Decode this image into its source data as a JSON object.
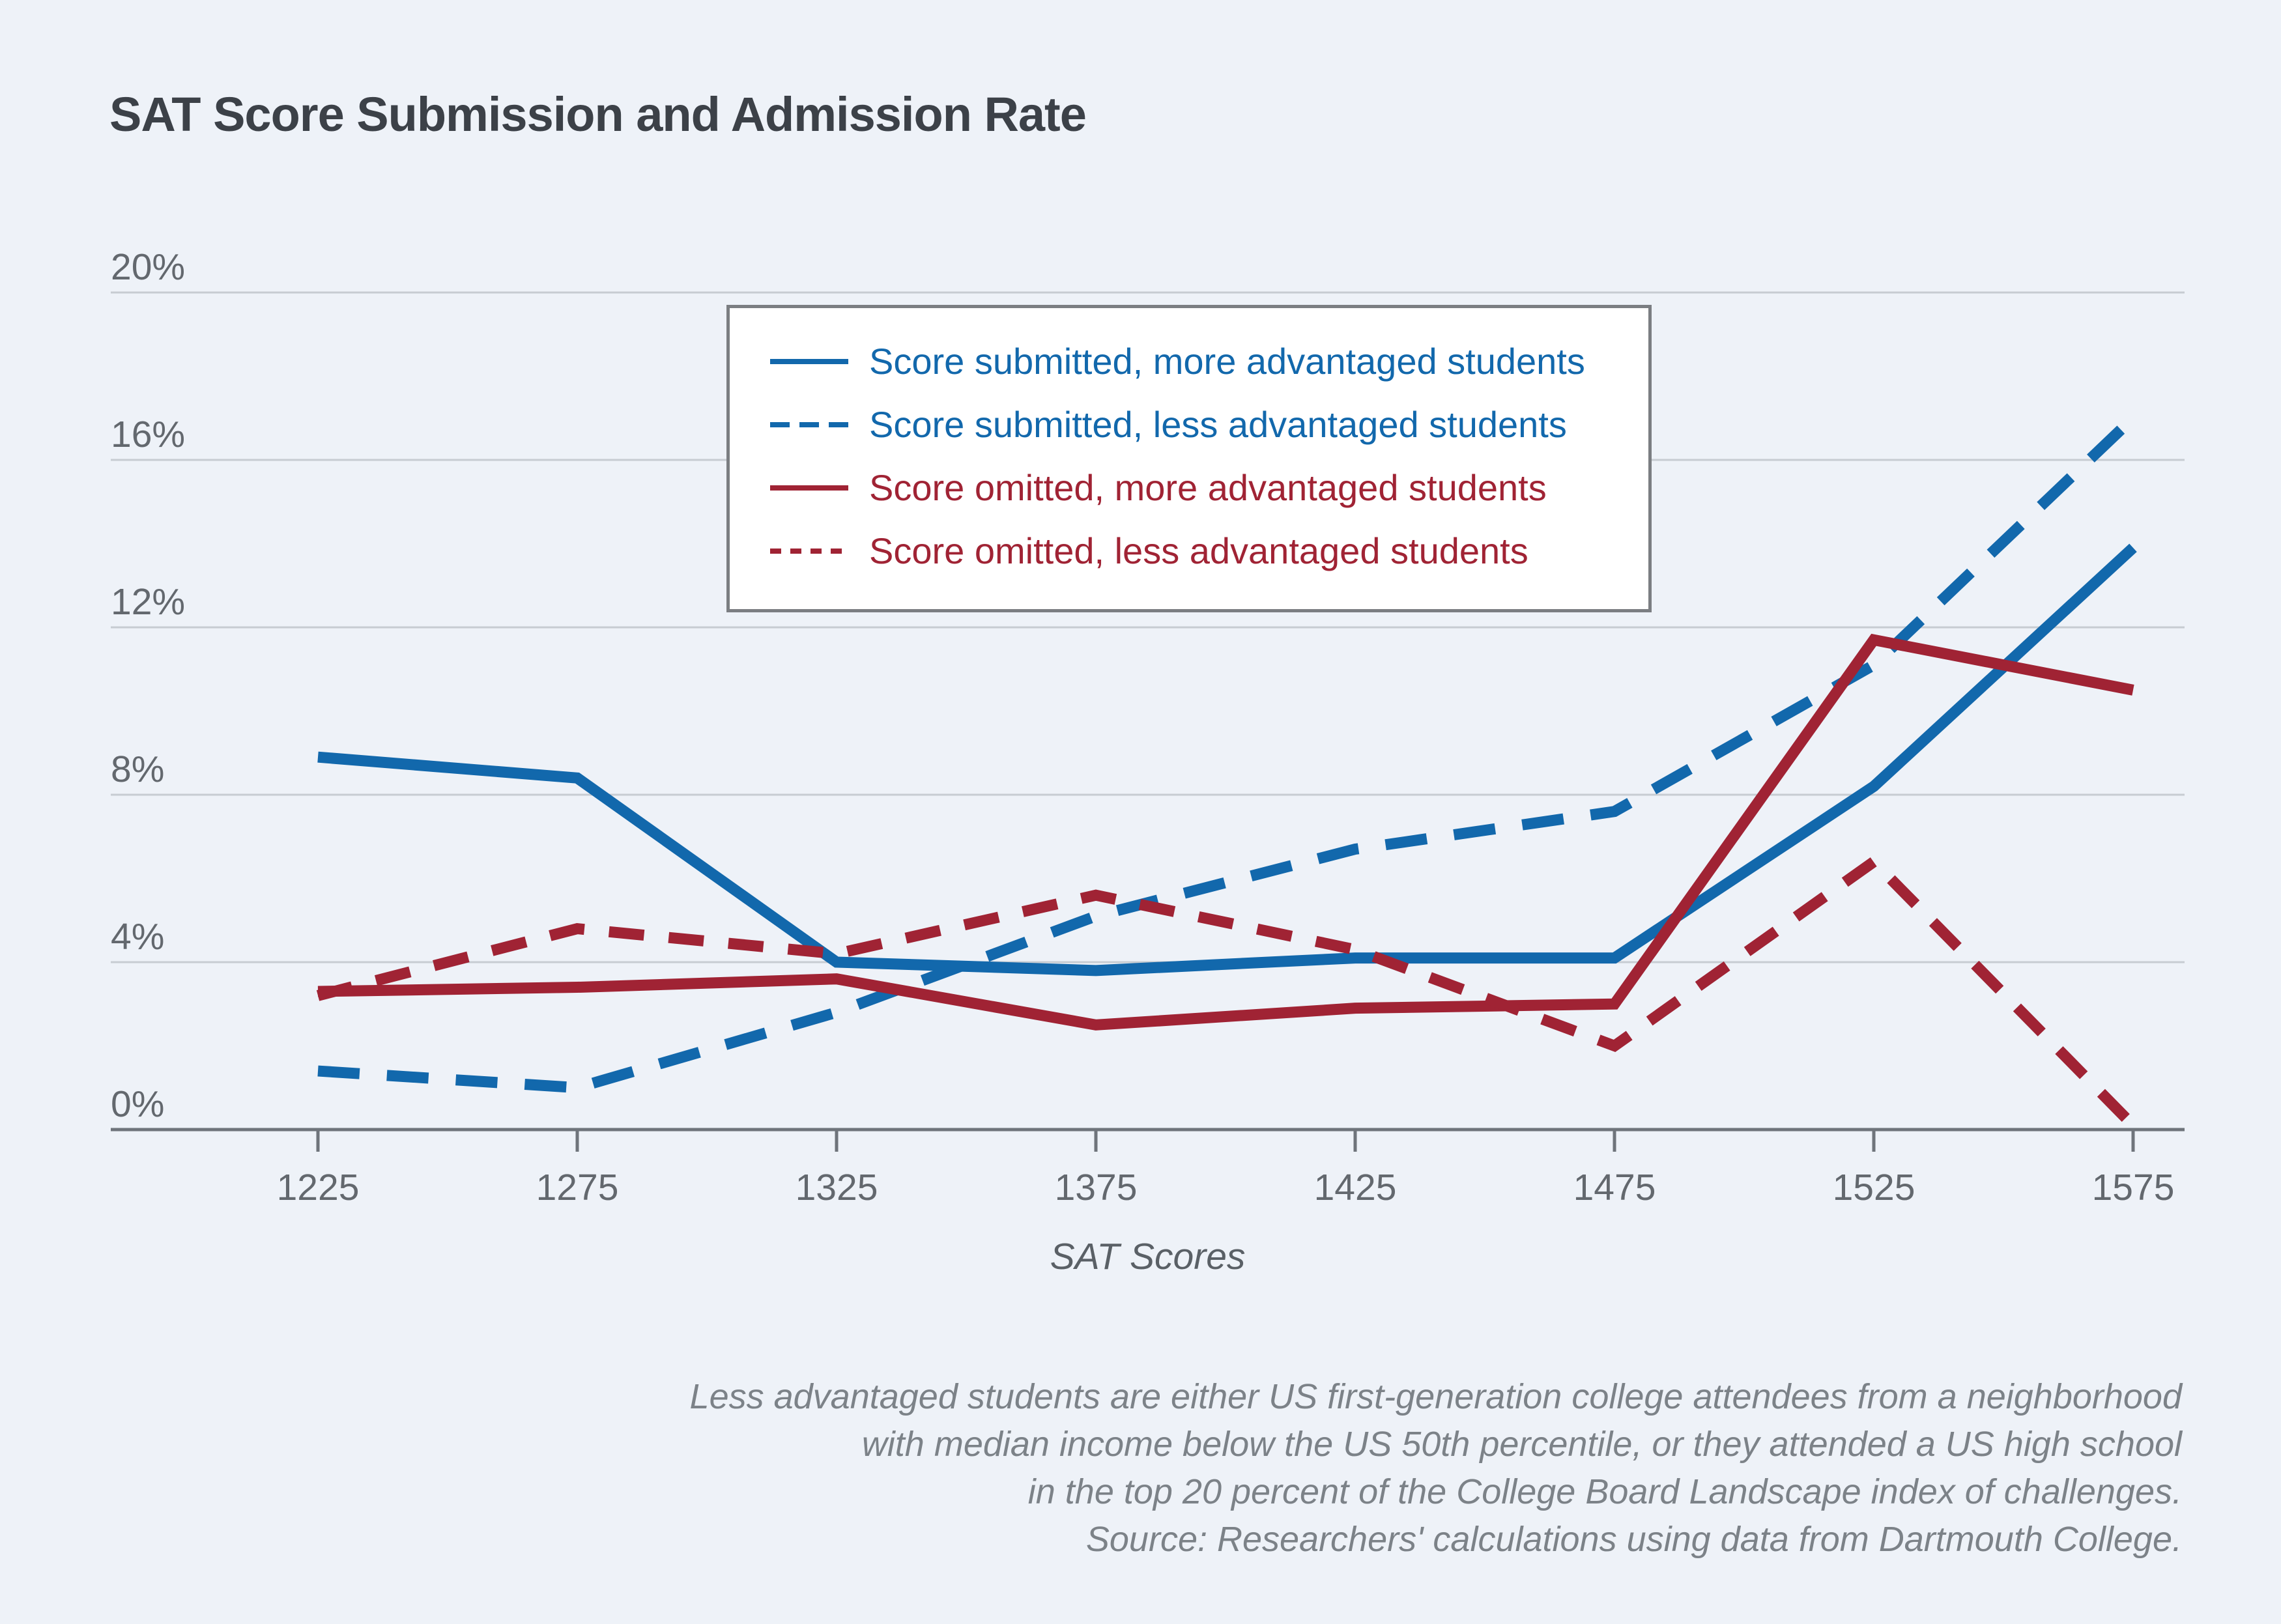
{
  "page": {
    "background_color": "#eef2f8",
    "title": "SAT Score Submission and Admission Rate",
    "title_color": "#3c4148"
  },
  "chart_data": {
    "type": "line",
    "title": "SAT Score Submission and Admission Rate",
    "xlabel": "SAT Scores",
    "ylabel": "",
    "x": [
      1225,
      1275,
      1325,
      1375,
      1425,
      1475,
      1525,
      1575
    ],
    "x_tick_labels": [
      "1225",
      "1275",
      "1325",
      "1375",
      "1425",
      "1475",
      "1525",
      "1575"
    ],
    "y_tick_labels": [
      "0%",
      "4%",
      "8%",
      "12%",
      "16%",
      "20%"
    ],
    "y_ticks_percent": [
      0,
      4,
      8,
      12,
      16,
      20
    ],
    "ylim": [
      0,
      20
    ],
    "grid": "horizontal",
    "legend_position": "inside-top-center",
    "series": [
      {
        "name": "Score submitted, more advantaged students",
        "color": "#1268ac",
        "style": "solid",
        "values": [
          8.9,
          8.4,
          4.0,
          3.8,
          4.1,
          4.1,
          8.2,
          13.9
        ]
      },
      {
        "name": "Score submitted, less advantaged students",
        "color": "#1268ac",
        "style": "dashed",
        "values": [
          1.4,
          1.0,
          2.8,
          5.1,
          6.7,
          7.6,
          11.1,
          17.0
        ]
      },
      {
        "name": "Score omitted, more advantaged students",
        "color": "#a02334",
        "style": "solid",
        "values": [
          3.3,
          3.4,
          3.6,
          2.5,
          2.9,
          3.0,
          11.7,
          10.5
        ]
      },
      {
        "name": "Score omitted, less advantaged students",
        "color": "#a02334",
        "style": "dashed",
        "values": [
          3.2,
          4.8,
          4.2,
          5.6,
          4.3,
          2.0,
          6.4,
          0.1
        ]
      }
    ]
  },
  "axes": {
    "x_axis_title": "SAT Scores",
    "gridline_color": "#c7ccd2",
    "axis_line_color": "#6f747b",
    "tick_label_color": "#63686e"
  },
  "footnote": {
    "lines": [
      "Less advantaged students are either US first-generation college attendees from a neighborhood",
      "with median income below the US 50th percentile, or they attended a US high school",
      "in the top 20 percent of the College Board Landscape index of challenges.",
      "Source: Researchers' calculations using data from Dartmouth College."
    ],
    "color": "#7c8288"
  }
}
